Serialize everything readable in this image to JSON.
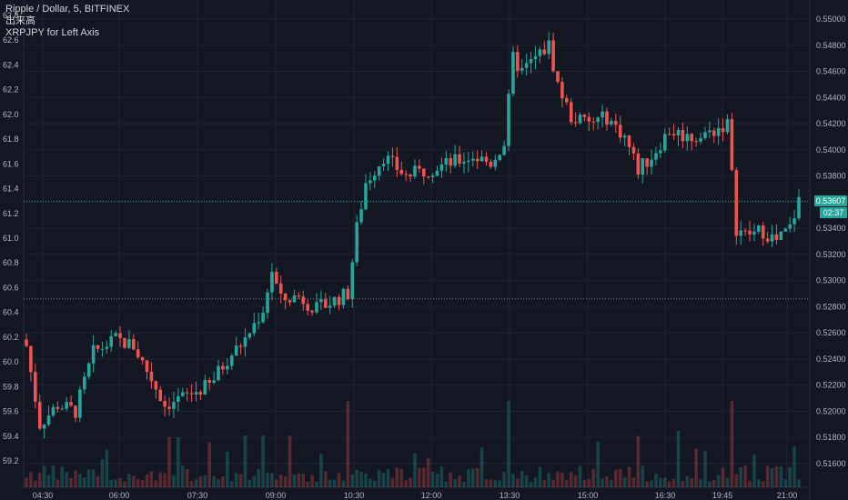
{
  "legend": {
    "title": "Ripple / Dollar, 5, BITFINEX",
    "line2": "出来高",
    "line3": "XRPJPY for Left Axis"
  },
  "current_price_label": "0.53607",
  "countdown_label": "02:37",
  "colors": {
    "background": "#131722",
    "up": "#26a69a",
    "down": "#ef5350",
    "grid": "#1f2433",
    "axis_text": "#b2b5be",
    "price_line": "#26a69a",
    "dotted_line": "#787b86"
  },
  "chart_data": {
    "type": "candlestick",
    "title": "Ripple / Dollar, 5, BITFINEX",
    "right_axis": {
      "range": [
        0.515,
        0.5505
      ],
      "ticks": [
        "0.55000",
        "0.54800",
        "0.54600",
        "0.54400",
        "0.54200",
        "0.54000",
        "0.53800",
        "0.53600",
        "0.53400",
        "0.53200",
        "0.53000",
        "0.52800",
        "0.52600",
        "0.52400",
        "0.52200",
        "0.52000",
        "0.51800",
        "0.51600"
      ]
    },
    "left_axis": {
      "label": "XRPJPY for Left Axis",
      "ticks": [
        "62.8",
        "62.6",
        "62.4",
        "62.2",
        "62.0",
        "61.8",
        "61.6",
        "61.4",
        "61.2",
        "61.0",
        "60.8",
        "60.6",
        "60.4",
        "60.2",
        "60.0",
        "59.8",
        "59.6",
        "59.4",
        "59.2"
      ]
    },
    "x_ticks": [
      "04:30",
      "06:00",
      "07:30",
      "09:00",
      "10:30",
      "12:00",
      "13:30",
      "15:00",
      "16:30",
      "19:45",
      "21:00"
    ],
    "current_price": 0.53607,
    "reference_line": 0.5286,
    "grid": true,
    "volume_label": "出来高",
    "path": [
      [
        0,
        0.525
      ],
      [
        3,
        0.519
      ],
      [
        7,
        0.5205
      ],
      [
        11,
        0.52
      ],
      [
        15,
        0.5245
      ],
      [
        20,
        0.5255
      ],
      [
        24,
        0.525
      ],
      [
        28,
        0.5225
      ],
      [
        31,
        0.5205
      ],
      [
        36,
        0.5212
      ],
      [
        41,
        0.522
      ],
      [
        45,
        0.524
      ],
      [
        49,
        0.5255
      ],
      [
        53,
        0.5278
      ],
      [
        55,
        0.5308
      ],
      [
        57,
        0.5285
      ],
      [
        61,
        0.5288
      ],
      [
        65,
        0.5278
      ],
      [
        69,
        0.5285
      ],
      [
        72,
        0.529
      ],
      [
        74,
        0.534
      ],
      [
        76,
        0.5375
      ],
      [
        80,
        0.5395
      ],
      [
        85,
        0.538
      ],
      [
        90,
        0.5385
      ],
      [
        95,
        0.539
      ],
      [
        100,
        0.5395
      ],
      [
        104,
        0.539
      ],
      [
        107,
        0.5405
      ],
      [
        109,
        0.547
      ],
      [
        111,
        0.546
      ],
      [
        114,
        0.547
      ],
      [
        117,
        0.548
      ],
      [
        119,
        0.545
      ],
      [
        122,
        0.5425
      ],
      [
        126,
        0.542
      ],
      [
        130,
        0.5425
      ],
      [
        134,
        0.541
      ],
      [
        137,
        0.5385
      ],
      [
        140,
        0.5395
      ],
      [
        144,
        0.5415
      ],
      [
        148,
        0.541
      ],
      [
        151,
        0.541
      ],
      [
        154,
        0.5415
      ],
      [
        157,
        0.542
      ],
      [
        159,
        0.534
      ],
      [
        161,
        0.5335
      ],
      [
        165,
        0.5338
      ],
      [
        168,
        0.533
      ],
      [
        171,
        0.534
      ],
      [
        173,
        0.5361
      ]
    ]
  }
}
